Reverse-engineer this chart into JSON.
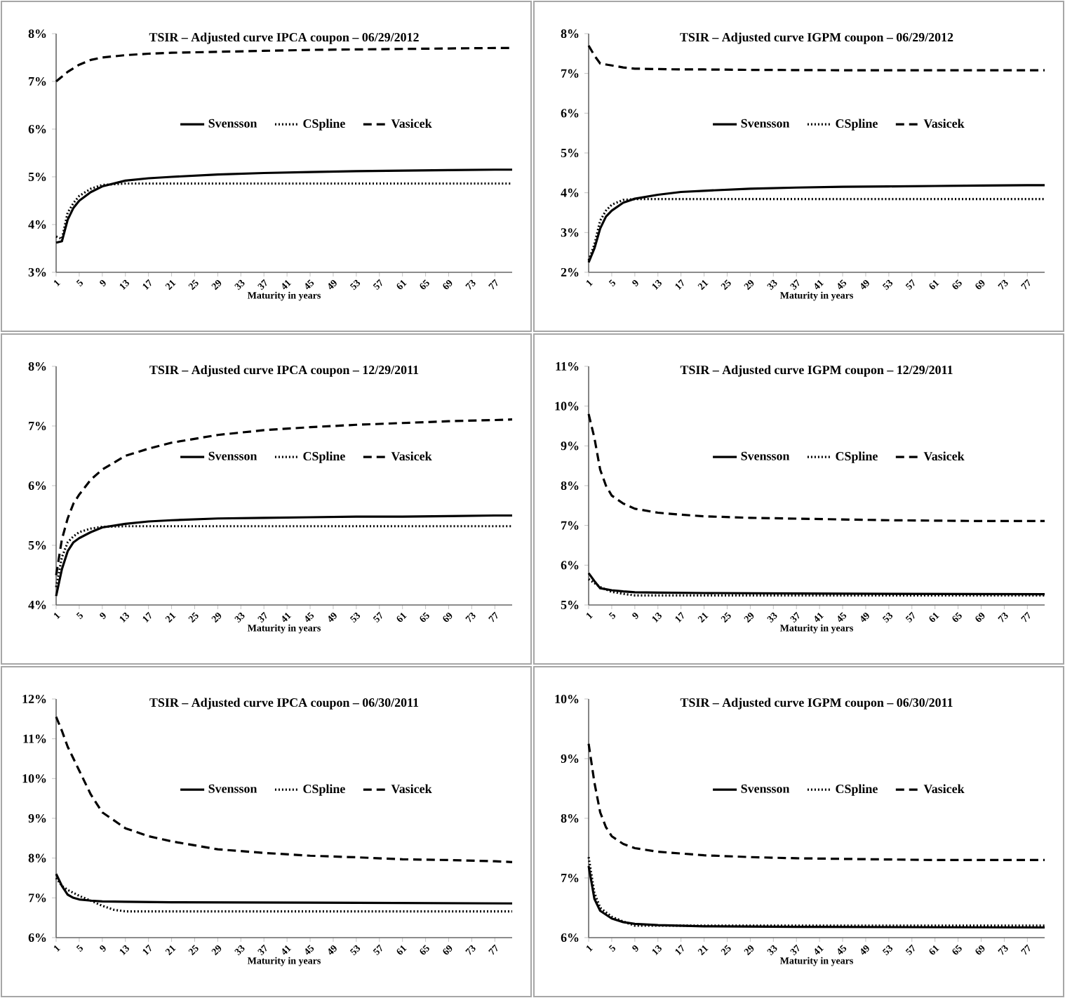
{
  "chart_data": [
    {
      "type": "line",
      "title": "TSIR – Adjusted curve IPCA coupon – 06/29/2012",
      "xlabel": "Maturity in years",
      "xlim": [
        1,
        80
      ],
      "xticks": [
        1,
        5,
        9,
        13,
        17,
        21,
        25,
        29,
        33,
        37,
        41,
        45,
        49,
        53,
        57,
        61,
        65,
        69,
        73,
        77
      ],
      "ylim": [
        3,
        8
      ],
      "yticks": [
        {
          "value": 3,
          "label": "3%"
        },
        {
          "value": 4,
          "label": "4%"
        },
        {
          "value": 5,
          "label": "5%"
        },
        {
          "value": 6,
          "label": "6%"
        },
        {
          "value": 7,
          "label": "7%"
        },
        {
          "value": 8,
          "label": "8%"
        }
      ],
      "legend": "center",
      "grid": false,
      "series": [
        {
          "name": "Svensson",
          "color": "#000000",
          "line_style": "solid",
          "x": [
            1,
            2,
            3,
            4,
            5,
            7,
            9,
            13,
            17,
            21,
            29,
            37,
            45,
            53,
            61,
            69,
            77,
            80
          ],
          "values": [
            3.62,
            3.65,
            4.1,
            4.35,
            4.5,
            4.68,
            4.8,
            4.92,
            4.97,
            5.0,
            5.05,
            5.08,
            5.1,
            5.12,
            5.13,
            5.14,
            5.15,
            5.15
          ]
        },
        {
          "name": "CSpline",
          "color": "#000000",
          "line_style": "dotted",
          "x": [
            1,
            2,
            3,
            4,
            5,
            7,
            9,
            13,
            80
          ],
          "values": [
            3.75,
            3.7,
            4.25,
            4.45,
            4.6,
            4.75,
            4.83,
            4.86,
            4.86
          ]
        },
        {
          "name": "Vasicek",
          "color": "#000000",
          "line_style": "dashed",
          "x": [
            1,
            2,
            3,
            5,
            7,
            9,
            13,
            17,
            21,
            29,
            37,
            45,
            53,
            61,
            69,
            77,
            80
          ],
          "values": [
            7.0,
            7.1,
            7.2,
            7.35,
            7.45,
            7.5,
            7.55,
            7.58,
            7.6,
            7.62,
            7.64,
            7.66,
            7.67,
            7.68,
            7.69,
            7.7,
            7.7
          ]
        }
      ]
    },
    {
      "type": "line",
      "title": "TSIR – Adjusted curve IGPM coupon – 06/29/2012",
      "xlabel": "Maturity in years",
      "xlim": [
        1,
        80
      ],
      "xticks": [
        1,
        5,
        9,
        13,
        17,
        21,
        25,
        29,
        33,
        37,
        41,
        45,
        49,
        53,
        57,
        61,
        65,
        69,
        73,
        77
      ],
      "ylim": [
        2,
        8
      ],
      "yticks": [
        {
          "value": 2,
          "label": "2%"
        },
        {
          "value": 3,
          "label": "3%"
        },
        {
          "value": 4,
          "label": "4%"
        },
        {
          "value": 5,
          "label": "5%"
        },
        {
          "value": 6,
          "label": "6%"
        },
        {
          "value": 7,
          "label": "7%"
        },
        {
          "value": 8,
          "label": "8%"
        }
      ],
      "legend": "center",
      "grid": false,
      "series": [
        {
          "name": "Svensson",
          "color": "#000000",
          "line_style": "solid",
          "x": [
            1,
            2,
            3,
            4,
            5,
            7,
            9,
            13,
            17,
            21,
            29,
            37,
            45,
            53,
            61,
            69,
            77,
            80
          ],
          "values": [
            2.25,
            2.6,
            3.1,
            3.4,
            3.55,
            3.75,
            3.85,
            3.95,
            4.02,
            4.05,
            4.1,
            4.13,
            4.15,
            4.16,
            4.17,
            4.18,
            4.19,
            4.19
          ]
        },
        {
          "name": "CSpline",
          "color": "#000000",
          "line_style": "dotted",
          "x": [
            1,
            2,
            3,
            4,
            5,
            7,
            9,
            80
          ],
          "values": [
            2.3,
            2.7,
            3.3,
            3.55,
            3.7,
            3.82,
            3.84,
            3.84
          ]
        },
        {
          "name": "Vasicek",
          "color": "#000000",
          "line_style": "dashed",
          "x": [
            1,
            2,
            3,
            5,
            7,
            9,
            13,
            17,
            21,
            29,
            45,
            61,
            80
          ],
          "values": [
            7.7,
            7.45,
            7.25,
            7.2,
            7.15,
            7.12,
            7.11,
            7.1,
            7.1,
            7.09,
            7.08,
            7.08,
            7.08
          ]
        }
      ]
    },
    {
      "type": "line",
      "title": "TSIR – Adjusted curve IPCA coupon – 12/29/2011",
      "xlabel": "Maturity in years",
      "xlim": [
        1,
        80
      ],
      "xticks": [
        1,
        5,
        9,
        13,
        17,
        21,
        25,
        29,
        33,
        37,
        41,
        45,
        49,
        53,
        57,
        61,
        65,
        69,
        73,
        77
      ],
      "ylim": [
        4,
        8
      ],
      "yticks": [
        {
          "value": 4,
          "label": "4%"
        },
        {
          "value": 5,
          "label": "5%"
        },
        {
          "value": 6,
          "label": "6%"
        },
        {
          "value": 7,
          "label": "7%"
        },
        {
          "value": 8,
          "label": "8%"
        }
      ],
      "legend": "center",
      "grid": false,
      "series": [
        {
          "name": "Svensson",
          "color": "#000000",
          "line_style": "solid",
          "x": [
            1,
            2,
            3,
            4,
            5,
            7,
            9,
            13,
            17,
            21,
            29,
            37,
            45,
            53,
            61,
            69,
            77,
            80
          ],
          "values": [
            4.15,
            4.6,
            4.9,
            5.05,
            5.12,
            5.22,
            5.3,
            5.36,
            5.4,
            5.42,
            5.45,
            5.46,
            5.47,
            5.48,
            5.48,
            5.49,
            5.5,
            5.5
          ]
        },
        {
          "name": "CSpline",
          "color": "#000000",
          "line_style": "dotted",
          "x": [
            1,
            2,
            3,
            4,
            5,
            7,
            9,
            13,
            80
          ],
          "values": [
            4.3,
            4.8,
            5.05,
            5.15,
            5.22,
            5.28,
            5.31,
            5.32,
            5.32
          ]
        },
        {
          "name": "Vasicek",
          "color": "#000000",
          "line_style": "dashed",
          "x": [
            1,
            2,
            3,
            4,
            5,
            7,
            9,
            13,
            17,
            21,
            29,
            37,
            45,
            53,
            61,
            69,
            77,
            80
          ],
          "values": [
            4.5,
            5.1,
            5.45,
            5.7,
            5.85,
            6.1,
            6.27,
            6.5,
            6.62,
            6.72,
            6.85,
            6.93,
            6.98,
            7.02,
            7.05,
            7.08,
            7.1,
            7.11
          ]
        }
      ]
    },
    {
      "type": "line",
      "title": "TSIR – Adjusted curve IGPM coupon – 12/29/2011",
      "xlabel": "Maturity in years",
      "xlim": [
        1,
        80
      ],
      "xticks": [
        1,
        5,
        9,
        13,
        17,
        21,
        25,
        29,
        33,
        37,
        41,
        45,
        49,
        53,
        57,
        61,
        65,
        69,
        73,
        77
      ],
      "ylim": [
        5,
        11
      ],
      "yticks": [
        {
          "value": 5,
          "label": "5%"
        },
        {
          "value": 6,
          "label": "6%"
        },
        {
          "value": 7,
          "label": "7%"
        },
        {
          "value": 8,
          "label": "8%"
        },
        {
          "value": 9,
          "label": "9%"
        },
        {
          "value": 10,
          "label": "10%"
        },
        {
          "value": 11,
          "label": "11%"
        }
      ],
      "legend": "center",
      "grid": false,
      "series": [
        {
          "name": "Svensson",
          "color": "#000000",
          "line_style": "solid",
          "x": [
            1,
            2,
            3,
            5,
            7,
            9,
            13,
            21,
            37,
            53,
            80
          ],
          "values": [
            5.8,
            5.6,
            5.42,
            5.37,
            5.34,
            5.32,
            5.31,
            5.3,
            5.29,
            5.28,
            5.27
          ]
        },
        {
          "name": "CSpline",
          "color": "#000000",
          "line_style": "dotted",
          "x": [
            1,
            2,
            3,
            5,
            7,
            9,
            80
          ],
          "values": [
            5.65,
            5.55,
            5.45,
            5.33,
            5.28,
            5.24,
            5.24
          ]
        },
        {
          "name": "Vasicek",
          "color": "#000000",
          "line_style": "dashed",
          "x": [
            1,
            2,
            3,
            4,
            5,
            7,
            9,
            13,
            17,
            21,
            29,
            37,
            45,
            53,
            61,
            69,
            77,
            80
          ],
          "values": [
            9.8,
            9.2,
            8.4,
            8.0,
            7.75,
            7.55,
            7.42,
            7.32,
            7.27,
            7.23,
            7.19,
            7.17,
            7.15,
            7.13,
            7.12,
            7.11,
            7.11,
            7.11
          ]
        }
      ]
    },
    {
      "type": "line",
      "title": "TSIR – Adjusted curve IPCA coupon – 06/30/2011",
      "xlabel": "Maturity in years",
      "xlim": [
        1,
        80
      ],
      "xticks": [
        1,
        5,
        9,
        13,
        17,
        21,
        25,
        29,
        33,
        37,
        41,
        45,
        49,
        53,
        57,
        61,
        65,
        69,
        73,
        77
      ],
      "ylim": [
        6,
        12
      ],
      "yticks": [
        {
          "value": 6,
          "label": "6%"
        },
        {
          "value": 7,
          "label": "7%"
        },
        {
          "value": 8,
          "label": "8%"
        },
        {
          "value": 9,
          "label": "9%"
        },
        {
          "value": 10,
          "label": "10%"
        },
        {
          "value": 11,
          "label": "11%"
        },
        {
          "value": 12,
          "label": "12%"
        }
      ],
      "legend": "center",
      "grid": false,
      "series": [
        {
          "name": "Svensson",
          "color": "#000000",
          "line_style": "solid",
          "x": [
            1,
            2,
            3,
            4,
            5,
            7,
            9,
            13,
            21,
            45,
            80
          ],
          "values": [
            7.6,
            7.3,
            7.08,
            7.0,
            6.96,
            6.93,
            6.91,
            6.9,
            6.89,
            6.88,
            6.86
          ]
        },
        {
          "name": "CSpline",
          "color": "#000000",
          "line_style": "dotted",
          "x": [
            1,
            2,
            3,
            5,
            7,
            9,
            11,
            13,
            80
          ],
          "values": [
            7.5,
            7.3,
            7.2,
            7.05,
            6.93,
            6.8,
            6.7,
            6.66,
            6.66
          ]
        },
        {
          "name": "Vasicek",
          "color": "#000000",
          "line_style": "dashed",
          "x": [
            1,
            2,
            3,
            5,
            7,
            9,
            13,
            17,
            21,
            29,
            37,
            45,
            53,
            61,
            69,
            77,
            80
          ],
          "values": [
            11.55,
            11.2,
            10.8,
            10.2,
            9.6,
            9.15,
            8.75,
            8.55,
            8.42,
            8.22,
            8.13,
            8.06,
            8.02,
            7.97,
            7.95,
            7.92,
            7.9
          ]
        }
      ]
    },
    {
      "type": "line",
      "title": "TSIR – Adjusted curve IGPM coupon – 06/30/2011",
      "xlabel": "Maturity in years",
      "xlim": [
        1,
        80
      ],
      "xticks": [
        1,
        5,
        9,
        13,
        17,
        21,
        25,
        29,
        33,
        37,
        41,
        45,
        49,
        53,
        57,
        61,
        65,
        69,
        73,
        77
      ],
      "ylim": [
        6,
        10
      ],
      "yticks": [
        {
          "value": 6,
          "label": "6%"
        },
        {
          "value": 7,
          "label": "7%"
        },
        {
          "value": 8,
          "label": "8%"
        },
        {
          "value": 9,
          "label": "9%"
        },
        {
          "value": 10,
          "label": "10%"
        }
      ],
      "legend": "center",
      "grid": false,
      "series": [
        {
          "name": "Svensson",
          "color": "#000000",
          "line_style": "solid",
          "x": [
            1,
            2,
            3,
            5,
            7,
            9,
            13,
            21,
            37,
            80
          ],
          "values": [
            7.2,
            6.65,
            6.45,
            6.32,
            6.26,
            6.23,
            6.21,
            6.19,
            6.18,
            6.17
          ]
        },
        {
          "name": "CSpline",
          "color": "#000000",
          "line_style": "dotted",
          "x": [
            1,
            2,
            3,
            5,
            7,
            9,
            80
          ],
          "values": [
            7.35,
            6.75,
            6.5,
            6.35,
            6.27,
            6.2,
            6.2
          ]
        },
        {
          "name": "Vasicek",
          "color": "#000000",
          "line_style": "dashed",
          "x": [
            1,
            2,
            3,
            4,
            5,
            7,
            9,
            13,
            17,
            21,
            29,
            37,
            45,
            53,
            61,
            77,
            80
          ],
          "values": [
            9.25,
            8.6,
            8.1,
            7.85,
            7.7,
            7.57,
            7.5,
            7.44,
            7.41,
            7.38,
            7.35,
            7.33,
            7.32,
            7.31,
            7.3,
            7.3,
            7.3
          ]
        }
      ]
    }
  ]
}
